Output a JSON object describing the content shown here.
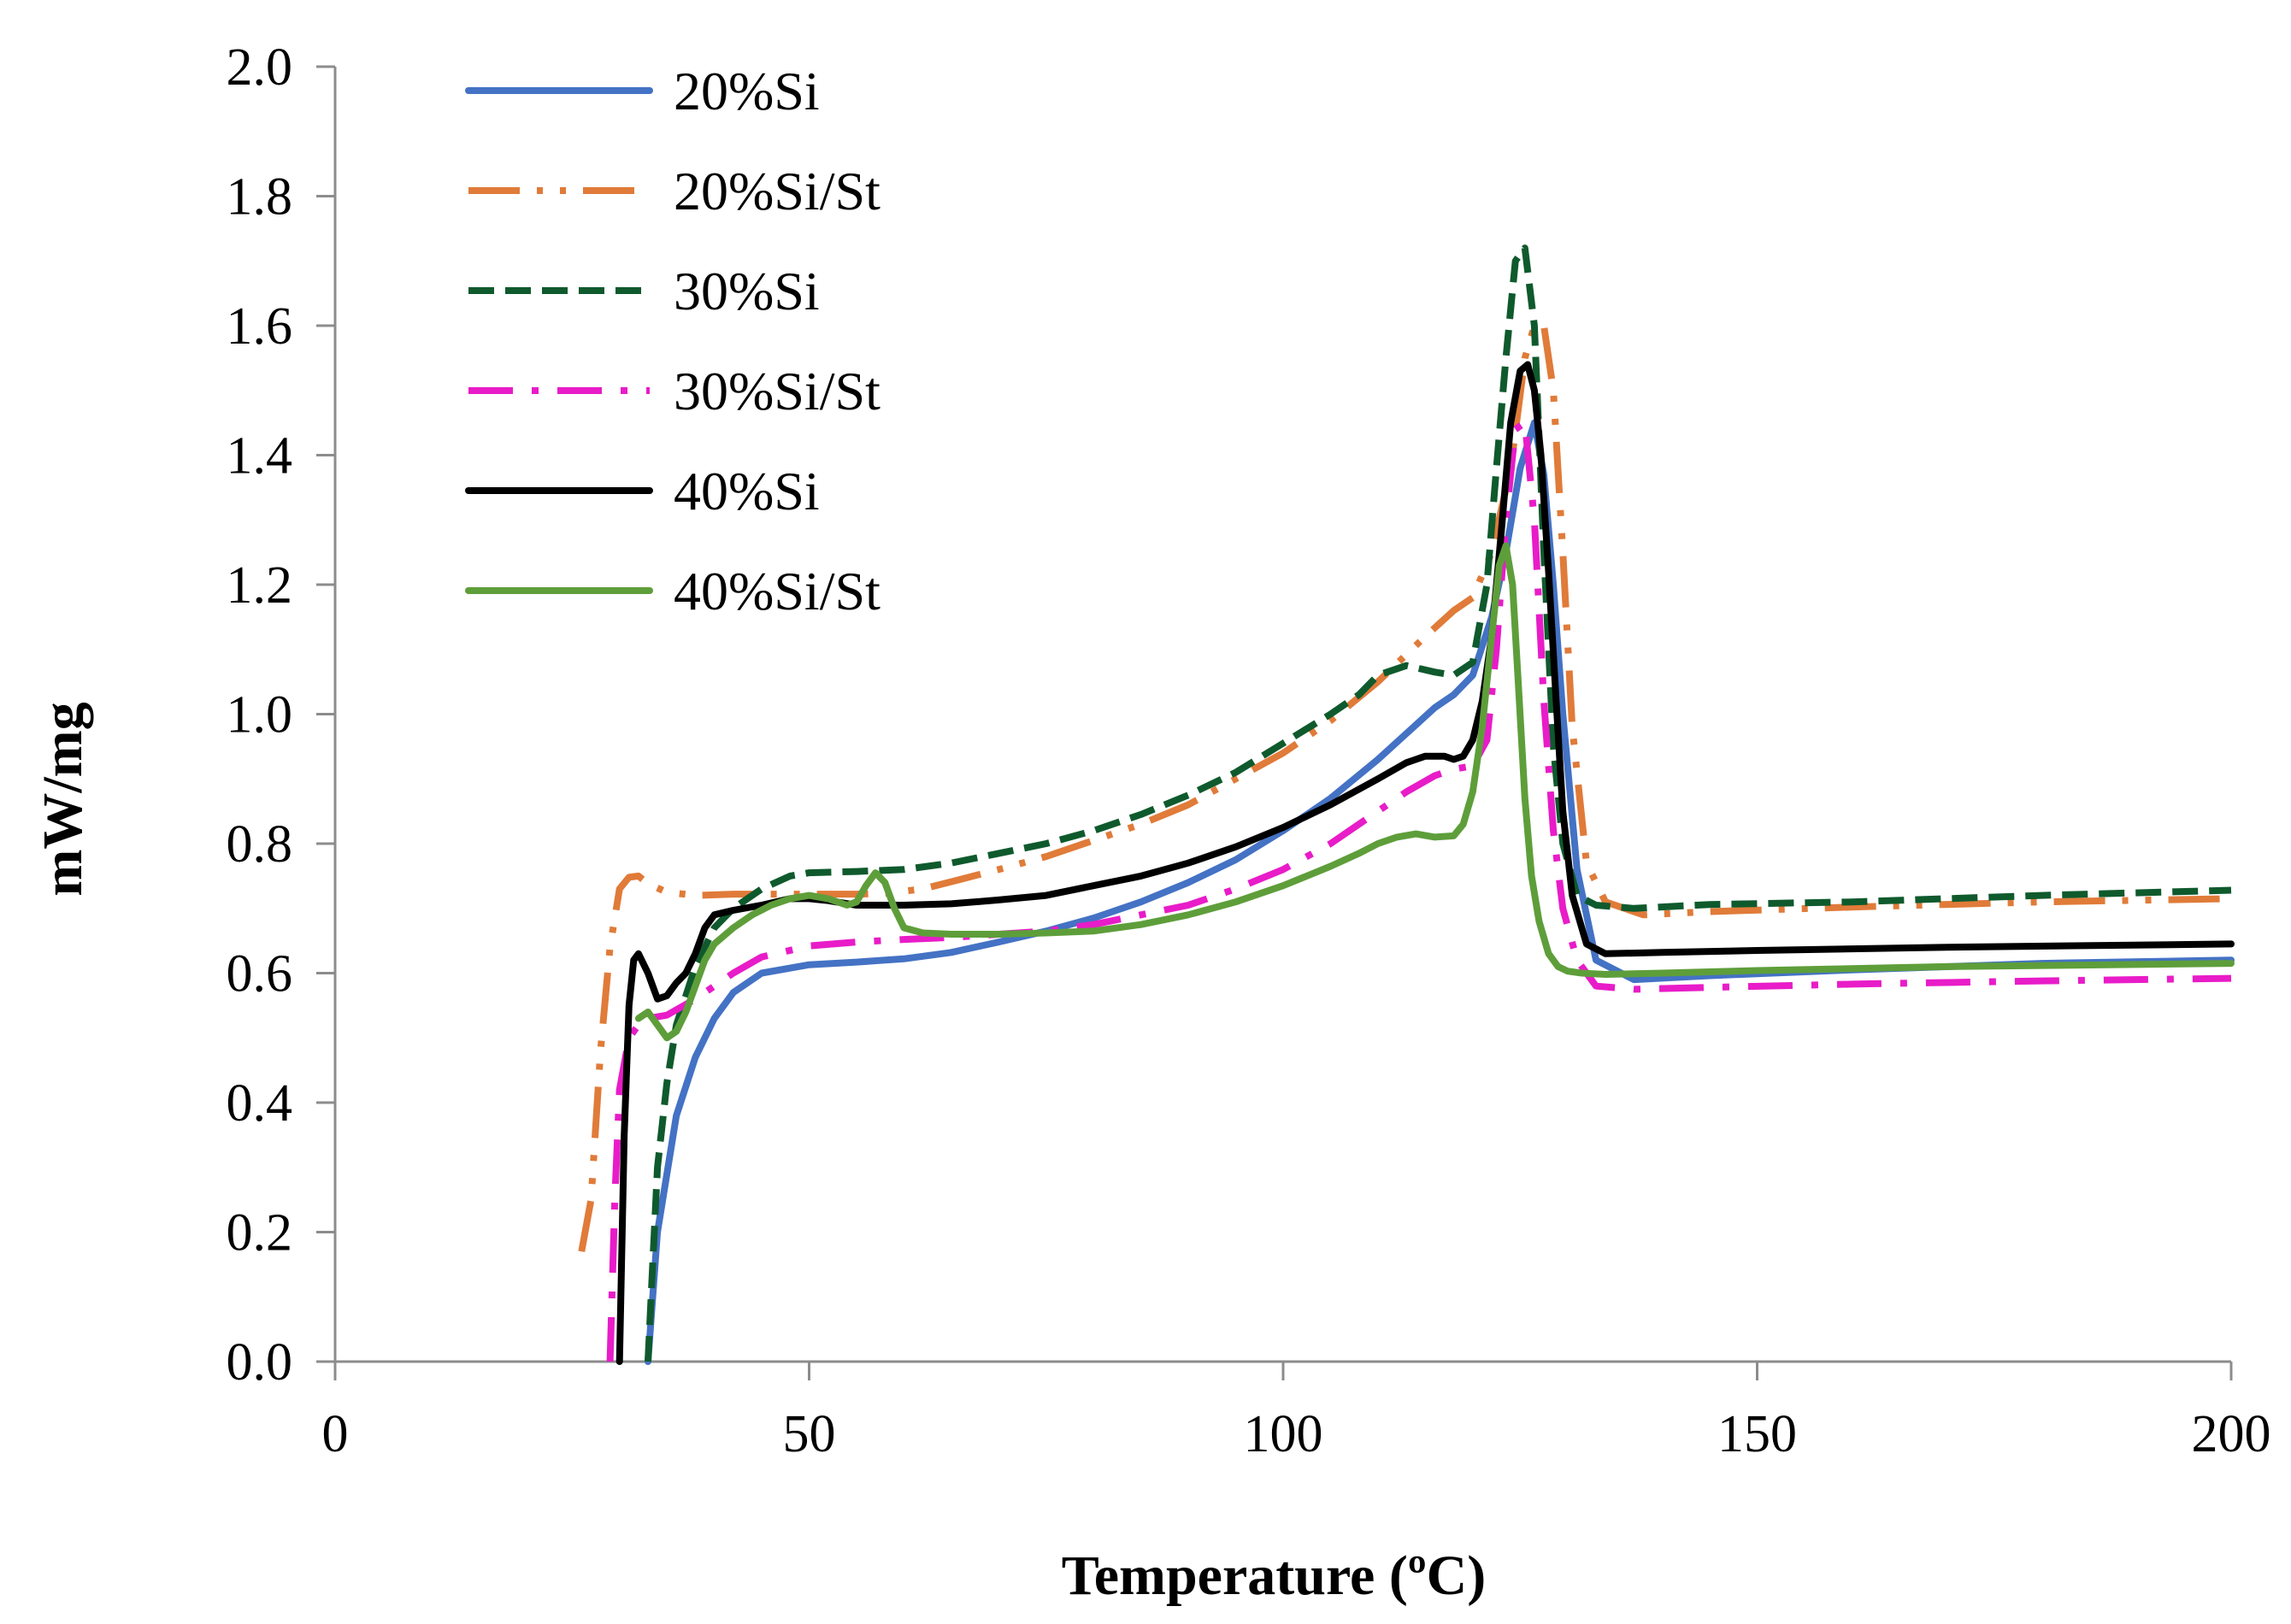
{
  "chart_data": {
    "type": "line",
    "title": "",
    "xlabel": "Temperature",
    "xlabel_unit": "(ºC)",
    "ylabel": "mW/mg",
    "xlim": [
      0,
      200
    ],
    "ylim": [
      0,
      2.0
    ],
    "xticks": [
      0,
      50,
      100,
      150,
      200
    ],
    "xtick_labels": [
      "0",
      "50",
      "100",
      "150",
      "200"
    ],
    "yticks": [
      0,
      0.2,
      0.4,
      0.6,
      0.8,
      1.0,
      1.2,
      1.4,
      1.6,
      1.8,
      2.0
    ],
    "ytick_labels": [
      "0.0",
      "0.2",
      "0.4",
      "0.6",
      "0.8",
      "1.0",
      "1.2",
      "1.4",
      "1.6",
      "1.8",
      "2.0"
    ],
    "grid": false,
    "legend_position": "top-left",
    "series": [
      {
        "name": "20%Si",
        "color": "#4472C4",
        "style": "solid",
        "x": [
          33,
          34,
          36,
          38,
          40,
          42,
          45,
          50,
          55,
          60,
          65,
          70,
          75,
          80,
          85,
          90,
          95,
          100,
          105,
          110,
          113,
          116,
          118,
          120,
          122,
          123.5,
          125,
          126.5,
          127.5,
          128.5,
          129.5,
          131,
          133,
          137,
          145,
          160,
          180,
          200
        ],
        "y": [
          0.0,
          0.2,
          0.38,
          0.47,
          0.53,
          0.57,
          0.6,
          0.613,
          0.617,
          0.622,
          0.632,
          0.648,
          0.665,
          0.685,
          0.71,
          0.74,
          0.775,
          0.82,
          0.87,
          0.93,
          0.97,
          1.01,
          1.03,
          1.06,
          1.15,
          1.25,
          1.38,
          1.45,
          1.37,
          1.2,
          1.0,
          0.76,
          0.62,
          0.59,
          0.596,
          0.605,
          0.615,
          0.62
        ]
      },
      {
        "name": "20%Si/St",
        "color": "#E07B39",
        "style": "dash-dot-dot",
        "x": [
          26,
          27,
          28,
          29,
          30,
          31,
          32,
          33,
          35,
          38,
          42,
          45,
          50,
          55,
          58,
          62,
          66,
          70,
          75,
          80,
          85,
          90,
          95,
          100,
          105,
          110,
          115,
          118,
          120,
          122,
          124,
          125.5,
          126.5,
          127.5,
          128.5,
          129.5,
          130.5,
          132,
          134,
          138,
          145,
          160,
          180,
          200
        ],
        "y": [
          0.17,
          0.25,
          0.48,
          0.64,
          0.73,
          0.748,
          0.75,
          0.738,
          0.725,
          0.72,
          0.722,
          0.722,
          0.722,
          0.722,
          0.723,
          0.73,
          0.745,
          0.76,
          0.78,
          0.805,
          0.83,
          0.86,
          0.9,
          0.94,
          0.99,
          1.05,
          1.12,
          1.16,
          1.18,
          1.25,
          1.38,
          1.55,
          1.6,
          1.6,
          1.5,
          1.25,
          0.98,
          0.77,
          0.71,
          0.69,
          0.695,
          0.702,
          0.71,
          0.715
        ]
      },
      {
        "name": "30%Si",
        "color": "#0F5A2D",
        "style": "dash",
        "x": [
          33,
          33.5,
          34,
          35,
          36,
          38,
          40,
          42,
          45,
          48,
          50,
          55,
          60,
          65,
          70,
          75,
          80,
          85,
          90,
          95,
          100,
          105,
          108,
          110,
          113,
          116,
          118,
          120,
          121.5,
          122.5,
          123.5,
          124.5,
          125.5,
          126.5,
          127.5,
          128.5,
          129.5,
          131,
          133,
          137,
          145,
          160,
          180,
          200
        ],
        "y": [
          0.0,
          0.15,
          0.3,
          0.43,
          0.52,
          0.61,
          0.67,
          0.7,
          0.73,
          0.75,
          0.755,
          0.757,
          0.76,
          0.77,
          0.785,
          0.8,
          0.82,
          0.845,
          0.875,
          0.91,
          0.955,
          1.0,
          1.03,
          1.06,
          1.075,
          1.065,
          1.06,
          1.08,
          1.2,
          1.38,
          1.55,
          1.7,
          1.72,
          1.6,
          1.25,
          0.95,
          0.8,
          0.72,
          0.705,
          0.7,
          0.706,
          0.71,
          0.72,
          0.728
        ]
      },
      {
        "name": "30%Si/St",
        "color": "#E81CC8",
        "style": "dash-dot",
        "x": [
          29,
          29.5,
          30,
          31,
          32,
          33,
          35,
          38,
          42,
          45,
          50,
          55,
          60,
          65,
          70,
          75,
          80,
          85,
          90,
          95,
          100,
          105,
          110,
          113,
          116,
          118,
          120,
          121.5,
          122.5,
          123.5,
          124.5,
          125.5,
          126.5,
          127.5,
          128.5,
          129.5,
          131,
          133,
          137,
          145,
          160,
          180,
          200
        ],
        "y": [
          0.0,
          0.25,
          0.42,
          0.5,
          0.52,
          0.53,
          0.535,
          0.56,
          0.6,
          0.625,
          0.642,
          0.648,
          0.652,
          0.655,
          0.66,
          0.665,
          0.675,
          0.69,
          0.705,
          0.73,
          0.76,
          0.8,
          0.85,
          0.88,
          0.905,
          0.915,
          0.92,
          0.96,
          1.1,
          1.3,
          1.44,
          1.45,
          1.3,
          1.02,
          0.82,
          0.7,
          0.62,
          0.58,
          0.575,
          0.578,
          0.583,
          0.588,
          0.592
        ]
      },
      {
        "name": "40%Si",
        "color": "#000000",
        "style": "solid",
        "x": [
          30,
          30.5,
          31,
          31.5,
          32,
          33,
          34,
          35,
          36,
          37,
          38,
          39,
          40,
          42,
          45,
          48,
          50,
          52,
          55,
          60,
          65,
          70,
          75,
          80,
          85,
          90,
          95,
          100,
          105,
          110,
          113,
          115,
          117,
          118,
          119,
          120,
          121,
          122,
          123,
          124,
          125,
          125.8,
          126.5,
          127.2,
          128,
          128.8,
          129.5,
          130.5,
          132,
          134,
          140,
          150,
          170,
          200
        ],
        "y": [
          0.0,
          0.35,
          0.55,
          0.62,
          0.63,
          0.6,
          0.56,
          0.565,
          0.585,
          0.6,
          0.63,
          0.67,
          0.69,
          0.697,
          0.705,
          0.715,
          0.715,
          0.712,
          0.705,
          0.705,
          0.707,
          0.713,
          0.72,
          0.735,
          0.75,
          0.77,
          0.795,
          0.825,
          0.86,
          0.9,
          0.925,
          0.935,
          0.935,
          0.93,
          0.935,
          0.96,
          1.02,
          1.12,
          1.28,
          1.45,
          1.53,
          1.54,
          1.5,
          1.4,
          1.22,
          1.02,
          0.85,
          0.72,
          0.645,
          0.63,
          0.632,
          0.635,
          0.64,
          0.645
        ]
      },
      {
        "name": "40%Si/St",
        "color": "#5E9E3A",
        "style": "solid",
        "x": [
          32,
          33,
          34,
          35,
          36,
          37,
          38,
          39,
          40,
          42,
          44,
          46,
          48,
          50,
          52,
          54,
          55,
          56,
          57,
          58,
          59,
          60,
          62,
          65,
          70,
          75,
          80,
          85,
          90,
          95,
          100,
          105,
          108,
          110,
          112,
          114,
          116,
          118,
          119,
          120,
          121,
          122,
          122.8,
          123.5,
          124.2,
          124.8,
          125.5,
          126.2,
          127,
          128,
          129,
          130,
          131.5,
          134,
          140,
          150,
          170,
          200
        ],
        "y": [
          0.53,
          0.54,
          0.52,
          0.5,
          0.51,
          0.54,
          0.58,
          0.62,
          0.645,
          0.67,
          0.69,
          0.705,
          0.715,
          0.72,
          0.715,
          0.705,
          0.71,
          0.735,
          0.755,
          0.74,
          0.7,
          0.67,
          0.662,
          0.66,
          0.66,
          0.662,
          0.665,
          0.675,
          0.69,
          0.71,
          0.735,
          0.765,
          0.785,
          0.8,
          0.81,
          0.815,
          0.81,
          0.812,
          0.83,
          0.88,
          0.98,
          1.12,
          1.23,
          1.26,
          1.2,
          1.05,
          0.87,
          0.75,
          0.68,
          0.63,
          0.61,
          0.603,
          0.6,
          0.598,
          0.6,
          0.604,
          0.61,
          0.615
        ]
      }
    ]
  }
}
